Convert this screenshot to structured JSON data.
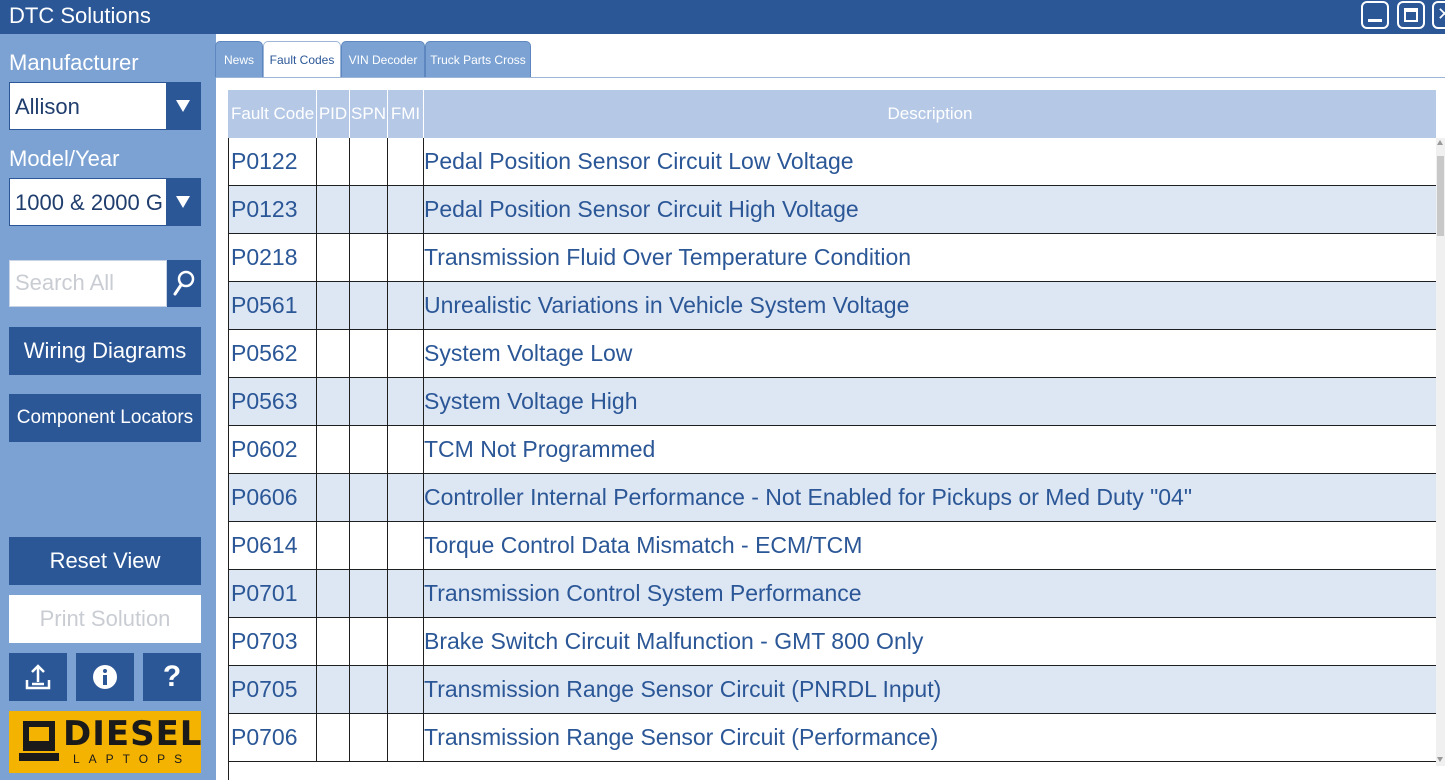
{
  "app": {
    "title": "DTC Solutions"
  },
  "sidebar": {
    "manufacturer_label": "Manufacturer",
    "manufacturer_value": "Allison",
    "model_label": "Model/Year",
    "model_value": "1000 & 2000 G",
    "search_placeholder": "Search All",
    "wiring_label": "Wiring Diagrams",
    "component_label": "Component Locators",
    "reset_label": "Reset View",
    "print_label": "Print Solution",
    "logo_word": "DIESEL",
    "logo_sub": "LAPTOPS"
  },
  "tabs": [
    {
      "label": "News"
    },
    {
      "label": "Fault Codes"
    },
    {
      "label": "VIN Decoder"
    },
    {
      "label": "Truck Parts Cross"
    }
  ],
  "table": {
    "headers": {
      "fault_code": "Fault Code",
      "pid": "PID",
      "spn": "SPN",
      "fmi": "FMI",
      "description": "Description"
    },
    "rows": [
      {
        "code": "P0122",
        "pid": "",
        "spn": "",
        "fmi": "",
        "description": "Pedal Position Sensor Circuit Low Voltage"
      },
      {
        "code": "P0123",
        "pid": "",
        "spn": "",
        "fmi": "",
        "description": "Pedal Position Sensor Circuit High Voltage"
      },
      {
        "code": "P0218",
        "pid": "",
        "spn": "",
        "fmi": "",
        "description": "Transmission Fluid Over Temperature Condition"
      },
      {
        "code": "P0561",
        "pid": "",
        "spn": "",
        "fmi": "",
        "description": "Unrealistic Variations in Vehicle System Voltage"
      },
      {
        "code": "P0562",
        "pid": "",
        "spn": "",
        "fmi": "",
        "description": "System Voltage Low"
      },
      {
        "code": "P0563",
        "pid": "",
        "spn": "",
        "fmi": "",
        "description": "System Voltage High"
      },
      {
        "code": "P0602",
        "pid": "",
        "spn": "",
        "fmi": "",
        "description": "TCM Not Programmed"
      },
      {
        "code": "P0606",
        "pid": "",
        "spn": "",
        "fmi": "",
        "description": "Controller Internal Performance - Not Enabled for Pickups or Med Duty \"04\""
      },
      {
        "code": "P0614",
        "pid": "",
        "spn": "",
        "fmi": "",
        "description": "Torque Control Data Mismatch - ECM/TCM"
      },
      {
        "code": "P0701",
        "pid": "",
        "spn": "",
        "fmi": "",
        "description": "Transmission Control System Performance"
      },
      {
        "code": "P0703",
        "pid": "",
        "spn": "",
        "fmi": "",
        "description": "Brake Switch Circuit Malfunction - GMT 800 Only"
      },
      {
        "code": "P0705",
        "pid": "",
        "spn": "",
        "fmi": "",
        "description": "Transmission Range Sensor Circuit (PNRDL Input)"
      },
      {
        "code": "P0706",
        "pid": "",
        "spn": "",
        "fmi": "",
        "description": "Transmission Range Sensor Circuit (Performance)"
      }
    ]
  },
  "colors": {
    "brand": "#2b5797",
    "sidebar": "#7ba2d3",
    "header": "#b5c9e7",
    "row_alt": "#dde6f3",
    "logo": "#f5b301"
  },
  "icons": {
    "search": "search-icon",
    "export": "export-icon",
    "info": "info-icon",
    "help": "help-icon",
    "minimize": "minimize-icon",
    "maximize": "maximize-icon",
    "close": "close-icon"
  }
}
